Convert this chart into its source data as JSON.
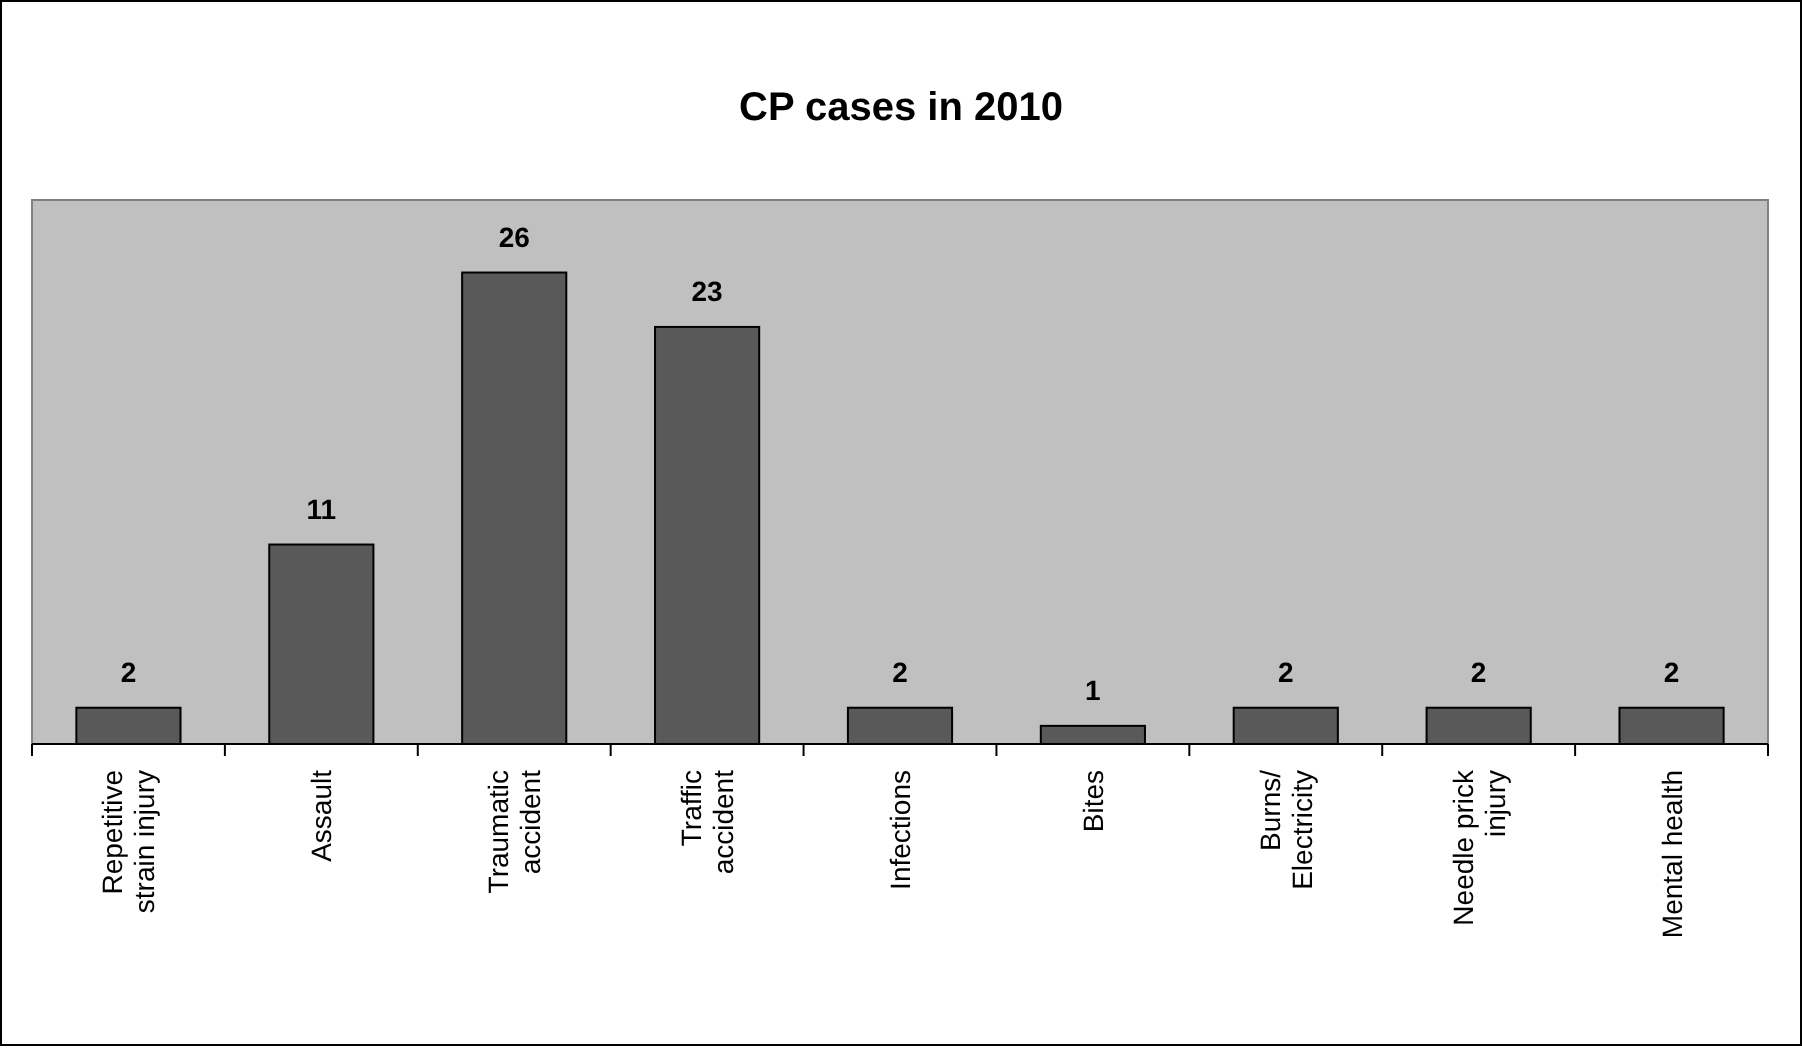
{
  "chart_data": {
    "type": "bar",
    "title": "CP cases in 2010",
    "categories": [
      "Repetitive strain injury",
      "Assault",
      "Traumatic accident",
      "Traffic accident",
      "Infections",
      "Bites",
      "Burns/ Electricity",
      "Needle prick injury",
      "Mental health"
    ],
    "values": [
      2,
      11,
      26,
      23,
      2,
      1,
      2,
      2,
      2
    ],
    "color": "#595959",
    "ylim": [
      0,
      30
    ],
    "tick_labels": "x",
    "data_labels": true
  }
}
